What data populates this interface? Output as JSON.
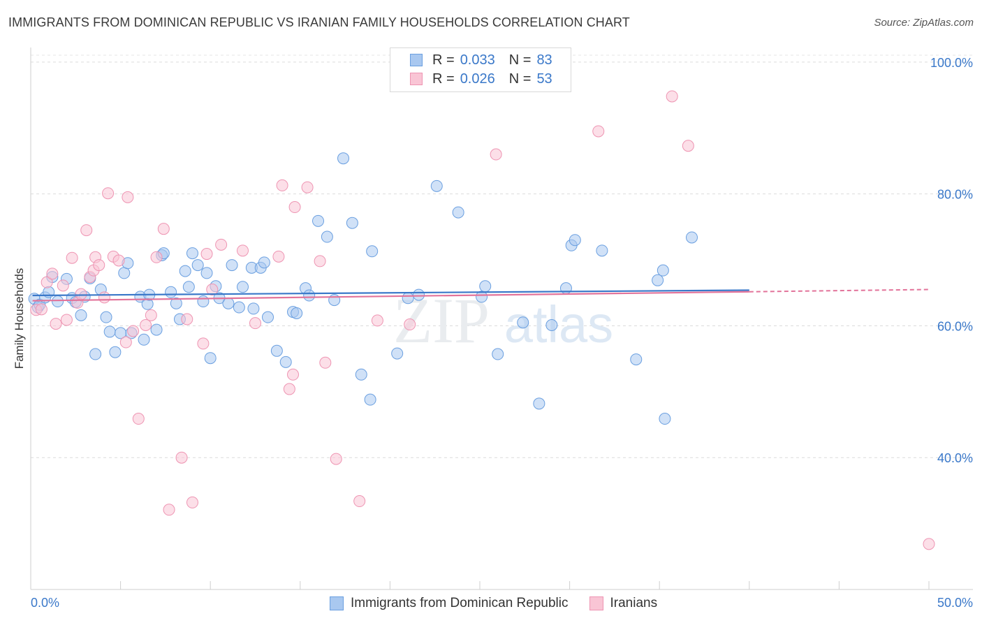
{
  "header": {
    "title": "IMMIGRANTS FROM DOMINICAN REPUBLIC VS IRANIAN FAMILY HOUSEHOLDS CORRELATION CHART",
    "source": "Source: ZipAtlas.com"
  },
  "watermark": {
    "zip": "ZIP",
    "atlas": "atlas"
  },
  "legend_top": {
    "rows": [
      {
        "r_label": "R =",
        "r_value": "0.033",
        "n_label": "N =",
        "n_value": "83",
        "color": "#a9c8f0",
        "stroke": "#6a9fe0"
      },
      {
        "r_label": "R =",
        "r_value": "0.026",
        "n_label": "N =",
        "n_value": "53",
        "color": "#f9c5d5",
        "stroke": "#ee94b2"
      }
    ]
  },
  "legend_bottom": {
    "items": [
      {
        "label": "Immigrants from Dominican Republic",
        "color": "#a9c8f0",
        "stroke": "#6a9fe0"
      },
      {
        "label": "Iranians",
        "color": "#f9c5d5",
        "stroke": "#ee94b2"
      }
    ]
  },
  "chart_data": {
    "type": "scatter",
    "title": "IMMIGRANTS FROM DOMINICAN REPUBLIC VS IRANIAN FAMILY HOUSEHOLDS CORRELATION CHART",
    "xlabel": "",
    "ylabel": "Family Households",
    "xlim": [
      0,
      50
    ],
    "ylim": [
      20,
      102
    ],
    "x_tick_labels": [
      {
        "value": 0,
        "label": "0.0%"
      },
      {
        "value": 50,
        "label": "50.0%"
      }
    ],
    "y_tick_labels": [
      {
        "value": 100,
        "label": "100.0%"
      },
      {
        "value": 80,
        "label": "80.0%"
      },
      {
        "value": 60,
        "label": "60.0%"
      },
      {
        "value": 40,
        "label": "40.0%"
      }
    ],
    "x_minor_ticks": [
      0,
      5,
      10,
      15,
      20,
      25,
      30,
      35,
      40,
      45,
      50
    ],
    "grid": true,
    "series": [
      {
        "name": "Immigrants from Dominican Republic",
        "color": "#a9c8f0",
        "stroke": "#6a9fe0",
        "trend": {
          "x0": 0.1,
          "y0": 64.6,
          "x1": 40,
          "y1": 65.4,
          "color": "#3a78c9"
        },
        "points": [
          [
            0.2,
            64.1
          ],
          [
            0.4,
            62.8
          ],
          [
            0.5,
            63.2
          ],
          [
            0.8,
            64.3
          ],
          [
            1.0,
            65.1
          ],
          [
            1.2,
            67.4
          ],
          [
            1.5,
            63.7
          ],
          [
            2.0,
            67.1
          ],
          [
            2.3,
            64.2
          ],
          [
            2.5,
            63.6
          ],
          [
            2.8,
            61.6
          ],
          [
            3.0,
            64.4
          ],
          [
            3.3,
            67.2
          ],
          [
            3.6,
            55.7
          ],
          [
            3.9,
            65.5
          ],
          [
            4.2,
            61.3
          ],
          [
            4.4,
            59.1
          ],
          [
            4.7,
            56.0
          ],
          [
            5.0,
            58.9
          ],
          [
            5.2,
            68.0
          ],
          [
            5.4,
            69.5
          ],
          [
            5.6,
            58.9
          ],
          [
            6.1,
            64.4
          ],
          [
            6.3,
            57.9
          ],
          [
            6.5,
            63.3
          ],
          [
            6.6,
            64.7
          ],
          [
            7.0,
            59.4
          ],
          [
            7.3,
            70.7
          ],
          [
            7.4,
            71.0
          ],
          [
            7.8,
            65.1
          ],
          [
            8.1,
            63.4
          ],
          [
            8.3,
            61.0
          ],
          [
            8.6,
            68.3
          ],
          [
            8.8,
            65.9
          ],
          [
            9.0,
            71.0
          ],
          [
            9.3,
            69.2
          ],
          [
            9.6,
            63.7
          ],
          [
            9.8,
            68.0
          ],
          [
            10.0,
            55.1
          ],
          [
            10.3,
            66.0
          ],
          [
            10.5,
            64.2
          ],
          [
            11.0,
            63.4
          ],
          [
            11.2,
            69.2
          ],
          [
            11.6,
            62.8
          ],
          [
            11.8,
            65.9
          ],
          [
            12.3,
            68.8
          ],
          [
            12.4,
            62.6
          ],
          [
            12.8,
            68.8
          ],
          [
            13.0,
            69.6
          ],
          [
            13.2,
            61.3
          ],
          [
            13.7,
            56.2
          ],
          [
            14.2,
            54.5
          ],
          [
            14.6,
            62.1
          ],
          [
            14.8,
            61.9
          ],
          [
            15.3,
            65.7
          ],
          [
            15.5,
            64.6
          ],
          [
            16.0,
            75.9
          ],
          [
            16.5,
            73.5
          ],
          [
            16.9,
            63.9
          ],
          [
            17.4,
            85.4
          ],
          [
            17.9,
            75.6
          ],
          [
            18.4,
            52.6
          ],
          [
            18.9,
            48.8
          ],
          [
            19.0,
            71.3
          ],
          [
            20.4,
            55.8
          ],
          [
            21.0,
            64.2
          ],
          [
            21.6,
            64.7
          ],
          [
            22.6,
            81.2
          ],
          [
            23.8,
            77.2
          ],
          [
            25.1,
            64.4
          ],
          [
            25.3,
            66.0
          ],
          [
            26.0,
            55.7
          ],
          [
            27.4,
            60.5
          ],
          [
            28.3,
            48.2
          ],
          [
            29.0,
            60.1
          ],
          [
            29.8,
            65.7
          ],
          [
            30.1,
            72.2
          ],
          [
            30.3,
            73.0
          ],
          [
            31.8,
            71.4
          ],
          [
            33.7,
            54.9
          ],
          [
            34.9,
            66.9
          ],
          [
            35.2,
            68.4
          ],
          [
            35.3,
            45.9
          ],
          [
            36.8,
            73.4
          ]
        ]
      },
      {
        "name": "Iranians",
        "color": "#f9c5d5",
        "stroke": "#ee94b2",
        "trend": {
          "x0": 0.1,
          "y0": 63.8,
          "x1": 50,
          "y1": 65.5,
          "color": "#e2739a",
          "dashed_from_x": 40
        },
        "points": [
          [
            0.3,
            62.4
          ],
          [
            0.6,
            62.5
          ],
          [
            0.9,
            66.6
          ],
          [
            1.2,
            67.9
          ],
          [
            1.4,
            60.3
          ],
          [
            1.8,
            66.1
          ],
          [
            2.0,
            60.9
          ],
          [
            2.3,
            70.3
          ],
          [
            2.6,
            63.5
          ],
          [
            2.8,
            64.8
          ],
          [
            3.1,
            74.5
          ],
          [
            3.3,
            67.4
          ],
          [
            3.5,
            68.4
          ],
          [
            3.6,
            70.4
          ],
          [
            3.8,
            69.2
          ],
          [
            4.1,
            64.3
          ],
          [
            4.3,
            80.1
          ],
          [
            4.6,
            70.5
          ],
          [
            4.9,
            69.9
          ],
          [
            5.3,
            57.5
          ],
          [
            5.4,
            79.5
          ],
          [
            5.7,
            59.2
          ],
          [
            6.0,
            45.9
          ],
          [
            6.4,
            60.1
          ],
          [
            6.7,
            61.6
          ],
          [
            7.0,
            70.4
          ],
          [
            7.4,
            74.7
          ],
          [
            7.7,
            32.1
          ],
          [
            8.4,
            40.0
          ],
          [
            8.7,
            61.0
          ],
          [
            9.0,
            33.2
          ],
          [
            9.6,
            57.3
          ],
          [
            9.8,
            70.9
          ],
          [
            10.1,
            65.5
          ],
          [
            10.6,
            72.3
          ],
          [
            11.8,
            71.4
          ],
          [
            12.5,
            60.4
          ],
          [
            13.8,
            70.5
          ],
          [
            14.0,
            81.3
          ],
          [
            14.4,
            50.4
          ],
          [
            14.6,
            52.6
          ],
          [
            14.7,
            78.0
          ],
          [
            15.4,
            81.0
          ],
          [
            16.1,
            69.8
          ],
          [
            16.4,
            54.4
          ],
          [
            17.0,
            39.8
          ],
          [
            18.3,
            33.4
          ],
          [
            19.3,
            60.8
          ],
          [
            21.1,
            60.2
          ],
          [
            25.9,
            86.0
          ],
          [
            31.6,
            89.5
          ],
          [
            35.7,
            94.8
          ],
          [
            36.6,
            87.3
          ],
          [
            50.0,
            26.9
          ]
        ]
      }
    ]
  }
}
